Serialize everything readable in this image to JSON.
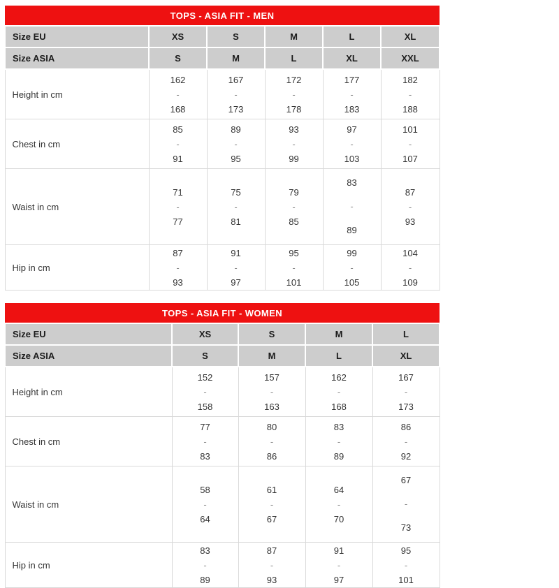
{
  "colors": {
    "header_red": "#ee1111",
    "size_row_gray": "#cdcdcd",
    "grid_line": "#d9d9d9",
    "title_text": "#ffffff",
    "body_text": "#333333"
  },
  "range_separator": "-",
  "tables": [
    {
      "title": "TOPS - ASIA FIT - MEN",
      "size_rows": [
        {
          "label": "Size EU",
          "values": [
            "XS",
            "S",
            "M",
            "L",
            "XL"
          ]
        },
        {
          "label": "Size ASIA",
          "values": [
            "S",
            "M",
            "L",
            "XL",
            "XXL"
          ]
        }
      ],
      "measure_rows": [
        {
          "label": "Height in cm",
          "ranges": [
            {
              "min": "162",
              "max": "168"
            },
            {
              "min": "167",
              "max": "173"
            },
            {
              "min": "172",
              "max": "178"
            },
            {
              "min": "177",
              "max": "183"
            },
            {
              "min": "182",
              "max": "188"
            }
          ]
        },
        {
          "label": "Chest in cm",
          "ranges": [
            {
              "min": "85",
              "max": "91"
            },
            {
              "min": "89",
              "max": "95"
            },
            {
              "min": "93",
              "max": "99"
            },
            {
              "min": "97",
              "max": "103"
            },
            {
              "min": "101",
              "max": "107"
            }
          ]
        },
        {
          "label": "Waist in cm",
          "ranges": [
            {
              "min": "71",
              "max": "77"
            },
            {
              "min": "75",
              "max": "81"
            },
            {
              "min": "79",
              "max": "85"
            },
            {
              "min": "83",
              "max": "89"
            },
            {
              "min": "87",
              "max": "93"
            }
          ]
        },
        {
          "label": "Hip in cm",
          "ranges": [
            {
              "min": "87",
              "max": "93"
            },
            {
              "min": "91",
              "max": "97"
            },
            {
              "min": "95",
              "max": "101"
            },
            {
              "min": "99",
              "max": "105"
            },
            {
              "min": "104",
              "max": "109"
            }
          ]
        }
      ]
    },
    {
      "title": "TOPS - ASIA FIT - WOMEN",
      "size_rows": [
        {
          "label": "Size EU",
          "values": [
            "XS",
            "S",
            "M",
            "L"
          ]
        },
        {
          "label": "Size ASIA",
          "values": [
            "S",
            "M",
            "L",
            "XL"
          ]
        }
      ],
      "measure_rows": [
        {
          "label": "Height in cm",
          "ranges": [
            {
              "min": "152",
              "max": "158"
            },
            {
              "min": "157",
              "max": "163"
            },
            {
              "min": "162",
              "max": "168"
            },
            {
              "min": "167",
              "max": "173"
            }
          ]
        },
        {
          "label": "Chest in cm",
          "ranges": [
            {
              "min": "77",
              "max": "83"
            },
            {
              "min": "80",
              "max": "86"
            },
            {
              "min": "83",
              "max": "89"
            },
            {
              "min": "86",
              "max": "92"
            }
          ]
        },
        {
          "label": "Waist in cm",
          "ranges": [
            {
              "min": "58",
              "max": "64"
            },
            {
              "min": "61",
              "max": "67"
            },
            {
              "min": "64",
              "max": "70"
            },
            {
              "min": "67",
              "max": "73"
            }
          ]
        },
        {
          "label": "Hip in cm",
          "ranges": [
            {
              "min": "83",
              "max": "89"
            },
            {
              "min": "87",
              "max": "93"
            },
            {
              "min": "91",
              "max": "97"
            },
            {
              "min": "95",
              "max": "101"
            }
          ]
        }
      ]
    }
  ]
}
